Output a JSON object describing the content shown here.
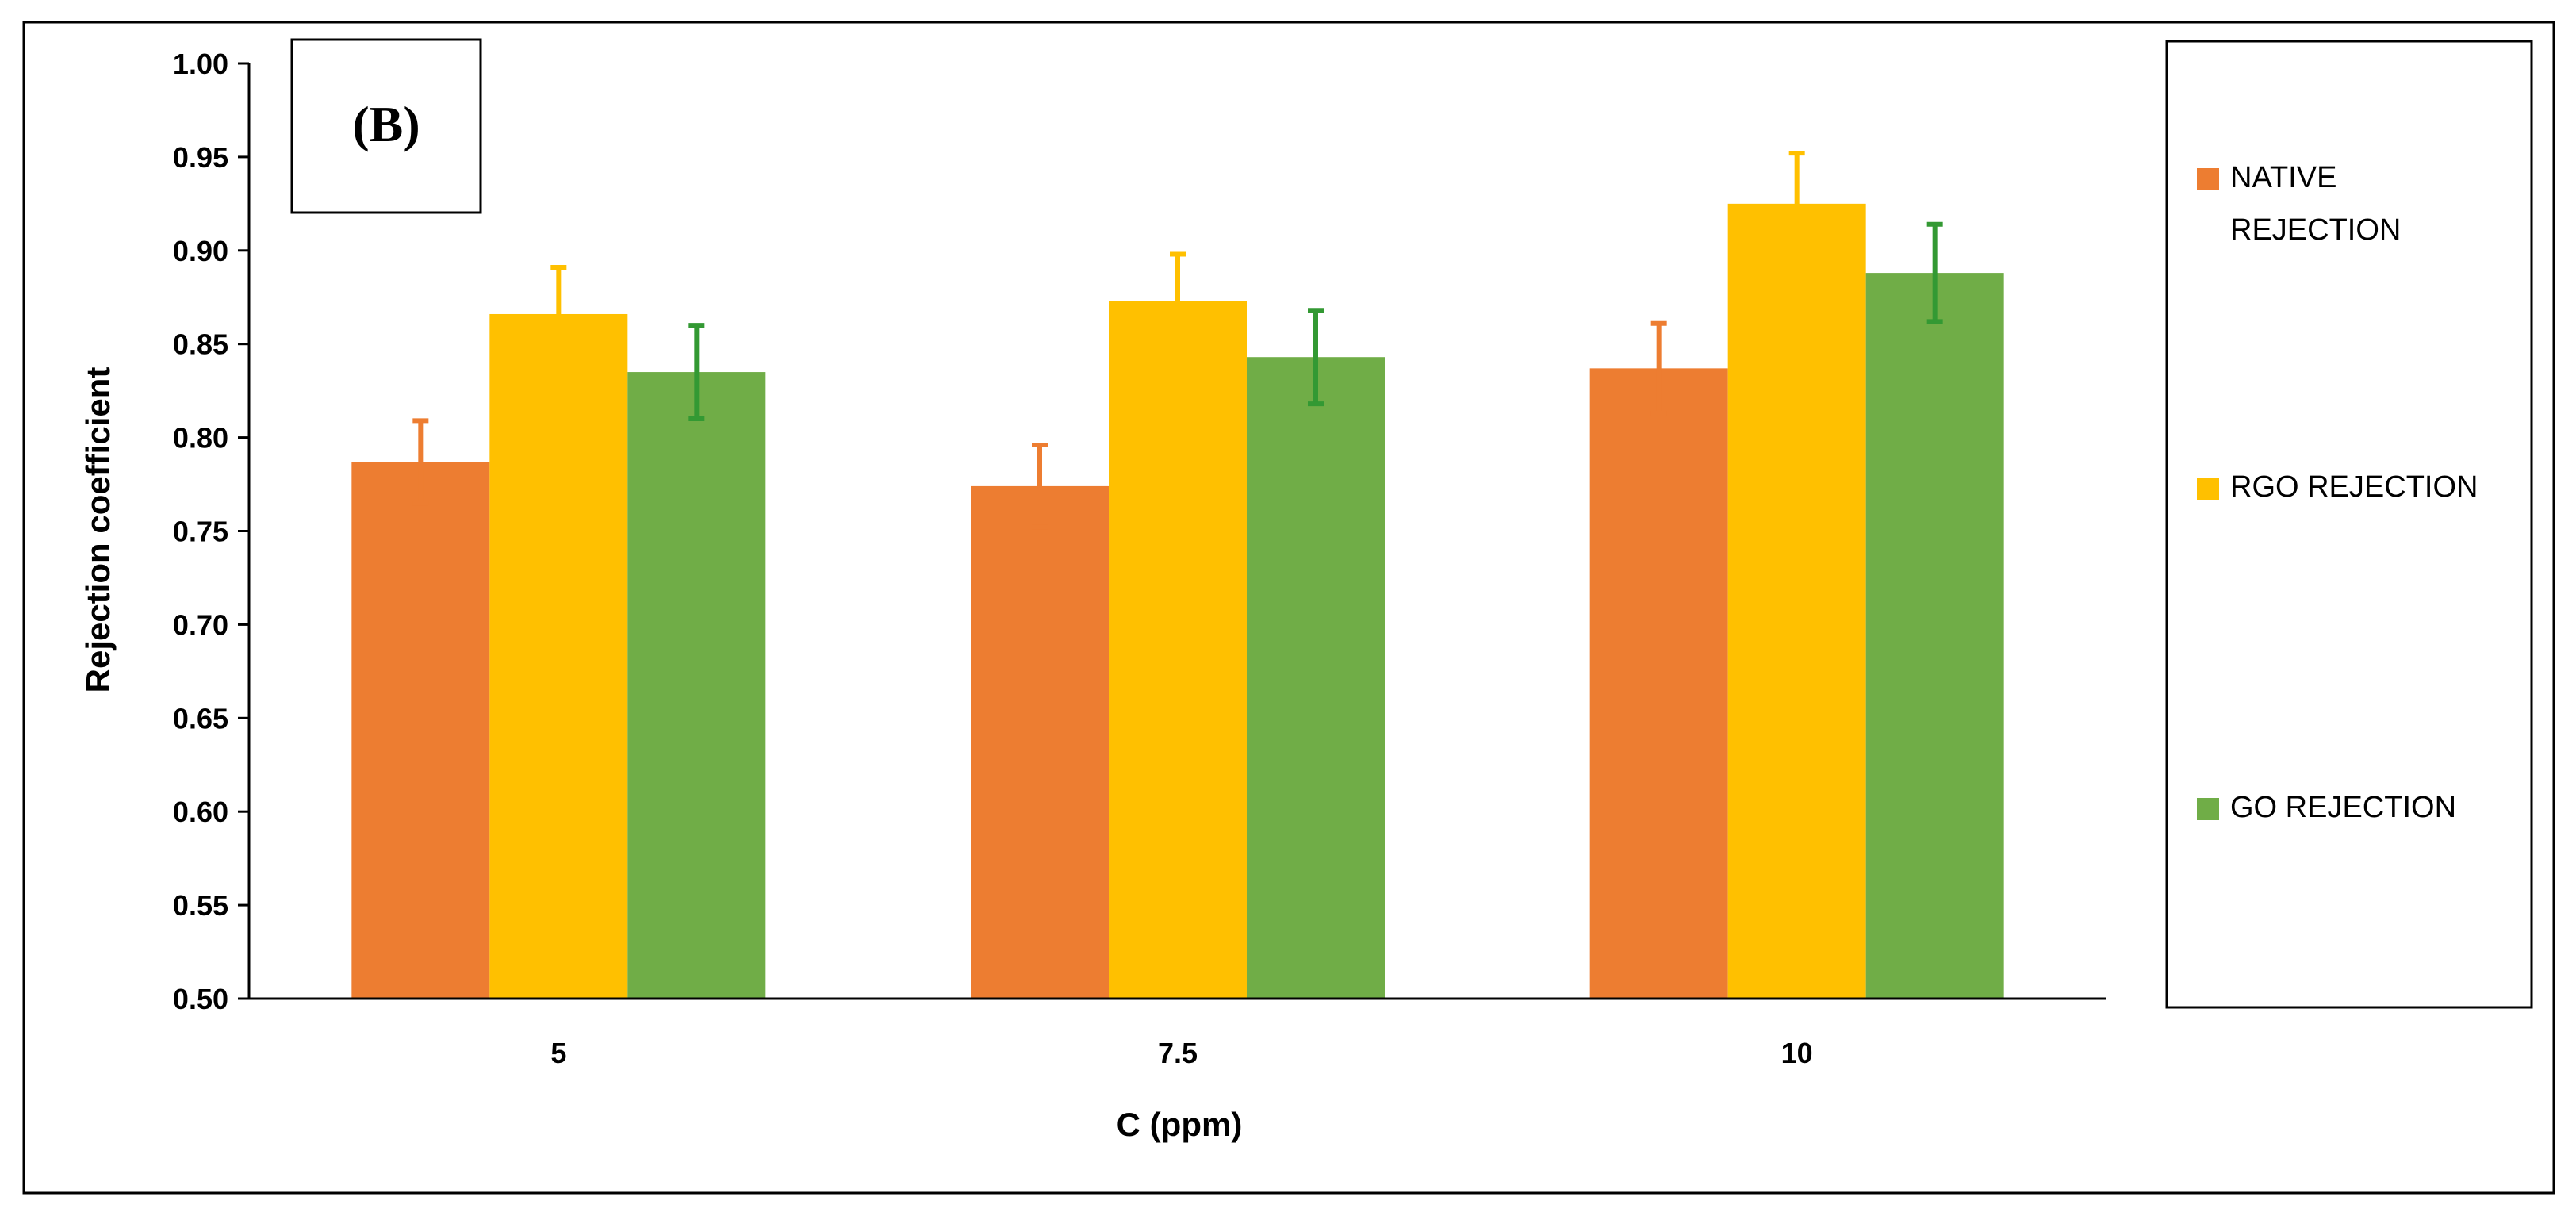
{
  "chart_data": {
    "type": "bar",
    "panel_label": "(B)",
    "xlabel": "C (ppm)",
    "ylabel": "Rejection coefficient",
    "categories": [
      "5",
      "7.5",
      "10"
    ],
    "ylim": [
      0.5,
      1.0
    ],
    "yticks": [
      "0.50",
      "0.55",
      "0.60",
      "0.65",
      "0.70",
      "0.75",
      "0.80",
      "0.85",
      "0.90",
      "0.95",
      "1.00"
    ],
    "grid": false,
    "legend_position": "right",
    "series": [
      {
        "name": "NATIVE REJECTION",
        "legend_lines": [
          "NATIVE",
          "REJECTION"
        ],
        "color": "#ED7D31",
        "values": [
          0.787,
          0.774,
          0.837
        ],
        "errors": [
          0.022,
          0.022,
          0.024
        ]
      },
      {
        "name": "RGO REJECTION",
        "legend_lines": [
          "RGO REJECTION"
        ],
        "color": "#FFC000",
        "values": [
          0.866,
          0.873,
          0.925
        ],
        "errors": [
          0.025,
          0.025,
          0.027
        ]
      },
      {
        "name": "GO REJECTION",
        "legend_lines": [
          "GO REJECTION"
        ],
        "color": "#70AD47",
        "error_color": "#339933",
        "values": [
          0.835,
          0.843,
          0.888
        ],
        "errors": [
          0.025,
          0.025,
          0.026
        ]
      }
    ]
  }
}
